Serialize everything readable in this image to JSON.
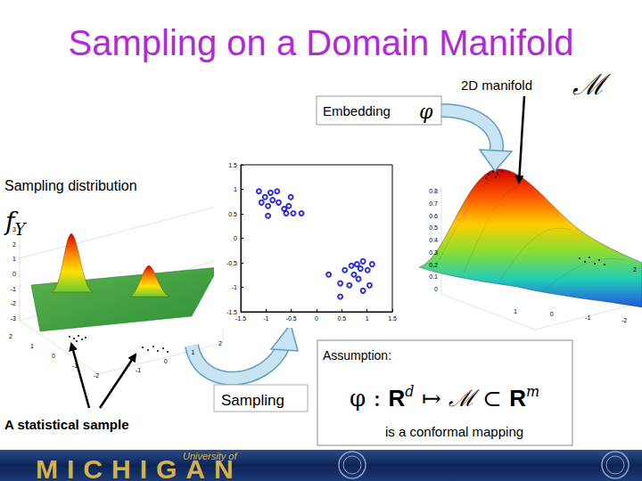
{
  "title": "Sampling on a Domain Manifold",
  "manifold_label": {
    "text": "2D manifold",
    "symbol": "ℳ"
  },
  "embedding_label": {
    "text": "Embedding",
    "symbol": "φ"
  },
  "sampling_distribution": {
    "text": "Sampling distribution",
    "symbol": "f",
    "subscript": "Y"
  },
  "sampling_label": "Sampling",
  "sample_label": "A statistical sample",
  "assumption": {
    "heading": "Assumption:",
    "formula": [
      {
        "text": "φ : "
      },
      {
        "bold": "R"
      },
      {
        "sup": "d"
      },
      {
        "text": " ↦ "
      },
      {
        "symbol": "ℳ"
      },
      {
        "text": " ⊂ "
      },
      {
        "bold": "R"
      },
      {
        "sup": "m"
      }
    ],
    "caption": "is a conformal mapping"
  },
  "left_surface": {
    "zticks": [
      3,
      2,
      1,
      0,
      -1,
      -2,
      -3
    ],
    "xticks": [
      2,
      1,
      0,
      -1,
      -2
    ],
    "yticks": [
      -1,
      0,
      1,
      2
    ]
  },
  "right_surface": {
    "zticks": [
      0.8,
      0.7,
      0.6,
      0.5,
      0.4,
      0.3,
      0.2,
      0.1,
      0
    ],
    "xticks": [
      1,
      0,
      -1,
      -2
    ],
    "yticks": [
      2
    ]
  },
  "chart_data": {
    "type": "scatter",
    "x": [
      -1.14,
      -1.02,
      -1.09,
      -0.96,
      -0.87,
      -0.78,
      -0.75,
      -0.64,
      -0.55,
      -0.46,
      -0.96,
      -0.6,
      -0.3,
      -0.91,
      -0.51,
      0.24,
      0.47,
      0.56,
      0.69,
      0.8,
      0.87,
      0.92,
      1.01,
      1.1,
      0.83,
      0.65,
      1.05,
      0.47,
      0.92,
      0.74
    ],
    "values": [
      0.96,
      0.84,
      0.73,
      0.66,
      0.78,
      0.96,
      0.73,
      0.6,
      0.66,
      0.51,
      0.46,
      0.51,
      0.51,
      0.93,
      0.84,
      -0.74,
      -0.92,
      -0.65,
      -0.56,
      -0.53,
      -0.62,
      -0.47,
      -0.65,
      -0.53,
      -0.83,
      -0.96,
      -0.96,
      -1.19,
      -1.07,
      -0.74
    ],
    "xlim": [
      -1.5,
      1.5
    ],
    "ylim": [
      -1.5,
      1.5
    ],
    "xticks": [
      -1.5,
      -1,
      -0.5,
      0,
      0.5,
      1,
      1.5
    ],
    "yticks": [
      -1.5,
      -1,
      -0.5,
      0,
      0.5,
      1,
      1.5
    ],
    "marker": "open_circle",
    "color": "#0000cc",
    "grid": false
  },
  "footer": {
    "small": "University of",
    "large": "MICHIGAN"
  }
}
